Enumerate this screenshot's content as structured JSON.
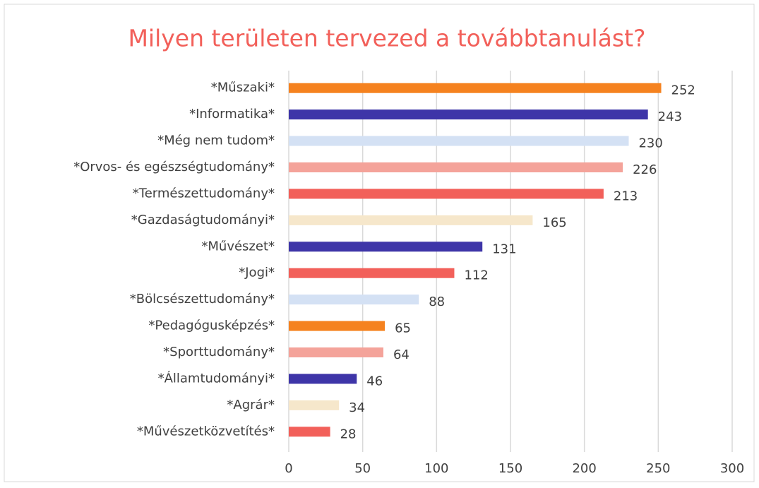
{
  "chart_data": {
    "type": "bar",
    "orientation": "horizontal",
    "title": "Milyen területen tervezed a továbbtanulást?",
    "categories": [
      "*Műszaki*",
      "*Informatika*",
      "*Még nem tudom*",
      "*Orvos- és egészségtudomány*",
      "*Természettudomány*",
      "*Gazdaságtudományi*",
      "*Művészet*",
      "*Jogi*",
      "*Bölcsészettudomány*",
      "*Pedagógusképzés*",
      "*Sporttudomány*",
      "*Államtudományi*",
      "*Agrár*",
      "*Művészetközvetítés*"
    ],
    "values": [
      252,
      243,
      230,
      226,
      213,
      165,
      131,
      112,
      88,
      65,
      64,
      46,
      34,
      28
    ],
    "colors": [
      "#f5821f",
      "#3e35a8",
      "#d4e1f4",
      "#f4a39a",
      "#f2605a",
      "#f6e7cb",
      "#3e35a8",
      "#f2605a",
      "#d4e1f4",
      "#f5821f",
      "#f4a39a",
      "#3e35a8",
      "#f6e7cb",
      "#f2605a"
    ],
    "xlim": [
      0,
      300
    ],
    "xticks": [
      0,
      50,
      100,
      150,
      200,
      250,
      300
    ],
    "grid": true
  }
}
